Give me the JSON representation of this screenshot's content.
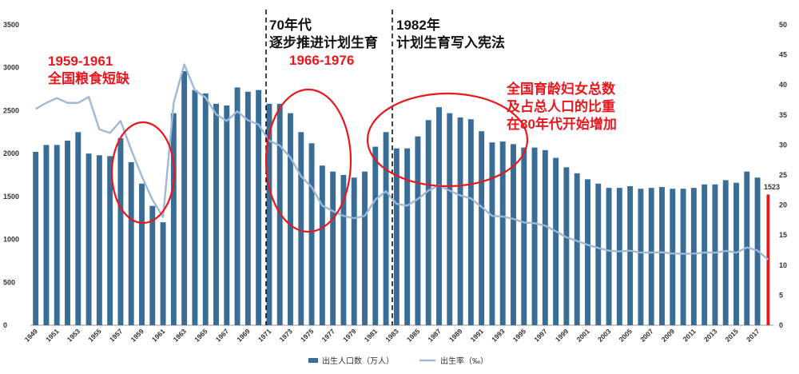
{
  "chart_data": {
    "type": "bar",
    "xlabel": "",
    "ylabel": "",
    "ylim": [
      0,
      3500
    ],
    "y2lim": [
      0,
      50
    ],
    "y_ticks": [
      "0",
      "500",
      "1000",
      "1500",
      "2000",
      "2500",
      "3000",
      "3500"
    ],
    "y2_ticks": [
      "0",
      "5",
      "10",
      "15",
      "20",
      "25",
      "30",
      "35",
      "40",
      "45",
      "50"
    ],
    "categories": [
      "1949",
      "1950",
      "1951",
      "1952",
      "1953",
      "1954",
      "1955",
      "1956",
      "1957",
      "1958",
      "1959",
      "1960",
      "1961",
      "1962",
      "1963",
      "1964",
      "1965",
      "1966",
      "1967",
      "1968",
      "1969",
      "1970",
      "1971",
      "1972",
      "1973",
      "1974",
      "1975",
      "1976",
      "1977",
      "1978",
      "1979",
      "1980",
      "1981",
      "1982",
      "1983",
      "1984",
      "1985",
      "1986",
      "1987",
      "1988",
      "1989",
      "1990",
      "1991",
      "1992",
      "1993",
      "1994",
      "1995",
      "1996",
      "1997",
      "1998",
      "1999",
      "2000",
      "2001",
      "2002",
      "2003",
      "2004",
      "2005",
      "2006",
      "2007",
      "2008",
      "2009",
      "2010",
      "2011",
      "2012",
      "2013",
      "2014",
      "2015",
      "2016",
      "2017",
      "2018"
    ],
    "x_tick_labels": [
      "1949",
      "1951",
      "1953",
      "1955",
      "1957",
      "1959",
      "1961",
      "1963",
      "1965",
      "1967",
      "1969",
      "1971",
      "1973",
      "1975",
      "1977",
      "1979",
      "1981",
      "1983",
      "1985",
      "1987",
      "1989",
      "1991",
      "1993",
      "1995",
      "1997",
      "1999",
      "2001",
      "2003",
      "2005",
      "2007",
      "2009",
      "2011",
      "2013",
      "2015",
      "2017"
    ],
    "series": [
      {
        "name": "出生人口数（万人）",
        "axis": "left",
        "kind": "bar",
        "values": [
          2020,
          2100,
          2100,
          2150,
          2250,
          2000,
          1980,
          1970,
          2180,
          1900,
          1650,
          1390,
          1200,
          2470,
          2960,
          2740,
          2700,
          2580,
          2560,
          2770,
          2720,
          2740,
          2580,
          2580,
          2470,
          2250,
          2120,
          1860,
          1790,
          1750,
          1720,
          1790,
          2080,
          2250,
          2060,
          2060,
          2200,
          2390,
          2540,
          2470,
          2420,
          2400,
          2260,
          2130,
          2140,
          2110,
          2070,
          2070,
          2040,
          1950,
          1840,
          1770,
          1700,
          1650,
          1600,
          1600,
          1620,
          1590,
          1600,
          1610,
          1590,
          1590,
          1600,
          1640,
          1640,
          1690,
          1660,
          1790,
          1720,
          1523
        ]
      },
      {
        "name": "出生率（‰）",
        "axis": "right",
        "kind": "line",
        "values": [
          36,
          37,
          37.8,
          37,
          37,
          38,
          32.6,
          32,
          34,
          29.2,
          24.8,
          20.9,
          18,
          37,
          43.4,
          39.1,
          37.9,
          35.1,
          34,
          35.6,
          34.1,
          33.4,
          30.7,
          29.9,
          27.9,
          24.8,
          23,
          19.9,
          19,
          18.2,
          17.8,
          18.2,
          20.9,
          22.3,
          20.2,
          19.9,
          21,
          22.4,
          23.3,
          22.4,
          21.6,
          21.1,
          19.7,
          18.2,
          18.1,
          17.7,
          17.1,
          16.98,
          16.57,
          15.64,
          14.64,
          14.03,
          13.38,
          12.86,
          12.41,
          12.29,
          12.4,
          12.09,
          12.1,
          12.14,
          11.95,
          11.9,
          11.93,
          12.1,
          12.08,
          12.37,
          12.07,
          12.95,
          12.43,
          10.94
        ]
      }
    ],
    "last_bar_label": "1523",
    "legend": {
      "position": "bottom",
      "items": [
        "出生人口数（万人）",
        "出生率（‰）"
      ]
    },
    "annotations": {
      "famine_years": "1959-1961",
      "famine_text": "全国粮食短缺",
      "seventies_line1": "70年代",
      "seventies_line2": "逐步推进计划生育",
      "seventies_years": "1966-1976",
      "y1982_line1": "1982年",
      "y1982_line2": "计划生育写入宪法",
      "eighties_line1": "全国育龄妇女总数",
      "eighties_line2": "及占总人口的比重",
      "eighties_line3": "在80年代开始增加"
    },
    "colors": {
      "bar": "#3a6d96",
      "line": "#9db8d9",
      "annotation_red": "#e8171e",
      "highlight_bar": "#e8171e"
    }
  }
}
